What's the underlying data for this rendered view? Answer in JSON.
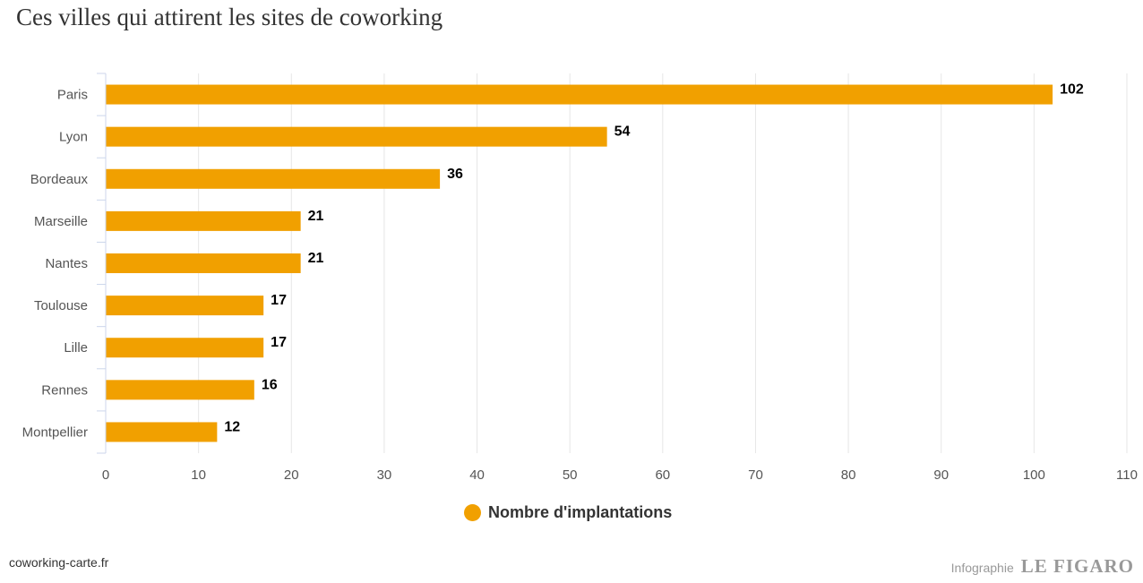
{
  "title": "Ces villes qui attirent les sites de coworking",
  "source": "coworking-carte.fr",
  "credit": {
    "prefix": "Infographie",
    "brand": "LE FIGARO"
  },
  "colors": {
    "bar": "#F1A000",
    "grid": "#E6E6E6",
    "axis": "#CCD6EB"
  },
  "chart_data": {
    "type": "bar",
    "orientation": "horizontal",
    "title": "Ces villes qui attirent les sites de coworking",
    "xlabel": "",
    "ylabel": "",
    "categories": [
      "Paris",
      "Lyon",
      "Bordeaux",
      "Marseille",
      "Nantes",
      "Toulouse",
      "Lille",
      "Rennes",
      "Montpellier"
    ],
    "series": [
      {
        "name": "Nombre d'implantations",
        "values": [
          102,
          54,
          36,
          21,
          21,
          17,
          17,
          16,
          12
        ]
      }
    ],
    "xlim": [
      0,
      110
    ],
    "ticks": [
      0,
      10,
      20,
      30,
      40,
      50,
      60,
      70,
      80,
      90,
      100,
      110
    ],
    "grid": true,
    "legend": "bottom-center",
    "data_labels": true
  }
}
